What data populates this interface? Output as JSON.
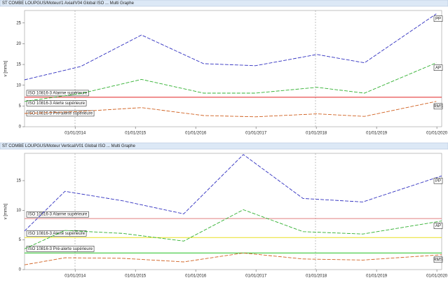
{
  "chart_data": [
    {
      "type": "line",
      "title": "ST COMBE LOUPGUS/Moteur/1 Axial/V04 Global ISO ... Multi Graphe",
      "y_label": "v [mm/s]",
      "xlim": [
        2013.16,
        2020.08
      ],
      "xticks": [
        {
          "value": 2014,
          "label": "01/01/2014"
        },
        {
          "value": 2015,
          "label": "01/01/2015"
        },
        {
          "value": 2016,
          "label": "01/01/2016"
        },
        {
          "value": 2017,
          "label": "01/01/2017"
        },
        {
          "value": 2018,
          "label": "01/01/2018"
        },
        {
          "value": 2019,
          "label": "01/01/2019"
        },
        {
          "value": 2020,
          "label": "01/01/2020"
        }
      ],
      "ylim": [
        0,
        28
      ],
      "yticks": [
        0,
        5,
        10,
        15,
        20,
        25
      ],
      "x": [
        2013.16,
        2014.09,
        2015.1,
        2016.13,
        2016.99,
        2018.01,
        2018.8,
        2019.99
      ],
      "series": [
        {
          "name": "PP",
          "color": "#3030c0",
          "values": [
            11.3,
            14.5,
            22.1,
            15.2,
            14.7,
            17.4,
            15.4,
            27.2
          ]
        },
        {
          "name": "AP",
          "color": "#30b030",
          "values": [
            6.1,
            8.0,
            11.4,
            8.1,
            8.1,
            9.5,
            8.1,
            15.4
          ]
        },
        {
          "name": "RMS",
          "color": "#d06020",
          "values": [
            3.2,
            3.7,
            4.6,
            2.7,
            2.4,
            3.1,
            2.5,
            6.1
          ]
        }
      ],
      "limits": [
        {
          "name": "ISO 10816-3 Alarme supérieure",
          "color": "#e02020",
          "value": 7.1
        },
        {
          "name": "ISO 10816-3 Alerte supérieure"
        },
        {
          "name": "ISO 10816-3 Pré-alerte supérieure"
        }
      ]
    },
    {
      "type": "line",
      "title": "ST COMBE LOUPGUS/Moteur Vertical/V01 Global ISO ... Multi Graphe",
      "y_label": "v [mm/s]",
      "xlim": [
        2013.16,
        2020.08
      ],
      "xticks": [
        {
          "value": 2014,
          "label": "01/01/2014"
        },
        {
          "value": 2015,
          "label": "01/01/2015"
        },
        {
          "value": 2016,
          "label": "01/01/2016"
        },
        {
          "value": 2017,
          "label": "01/01/2017"
        },
        {
          "value": 2018,
          "label": "01/01/2018"
        },
        {
          "value": 2019,
          "label": "01/01/2019"
        },
        {
          "value": 2020,
          "label": "01/01/2020"
        }
      ],
      "ylim": [
        0,
        19.6
      ],
      "yticks": [
        0,
        5,
        10,
        15
      ],
      "x": [
        2013.16,
        2013.83,
        2014.79,
        2015.8,
        2016.79,
        2017.78,
        2018.77,
        2020.08
      ],
      "series": [
        {
          "name": "PP",
          "color": "#3030c0",
          "values": [
            6.5,
            13.2,
            11.6,
            9.4,
            19.4,
            12.0,
            11.4,
            15.8
          ]
        },
        {
          "name": "AP",
          "color": "#30b030",
          "values": [
            3.5,
            6.6,
            6.1,
            4.8,
            10.1,
            6.4,
            6.0,
            8.2
          ]
        },
        {
          "name": "RMS",
          "color": "#d06020",
          "values": [
            0.8,
            2.0,
            1.9,
            1.3,
            2.8,
            1.8,
            1.6,
            2.5
          ]
        }
      ],
      "limits": [
        {
          "name": "ISO 10816-3 Alarme supérieure",
          "color": "#e08080",
          "value": 8.6
        },
        {
          "name": "ISO 10816-3 Alerte supérieure",
          "color": "#e8e020",
          "value": 5.4
        },
        {
          "name": "ISO 10816-3 Pré-alerte supérieure",
          "color": "#20c020",
          "value": 2.8
        }
      ]
    }
  ]
}
